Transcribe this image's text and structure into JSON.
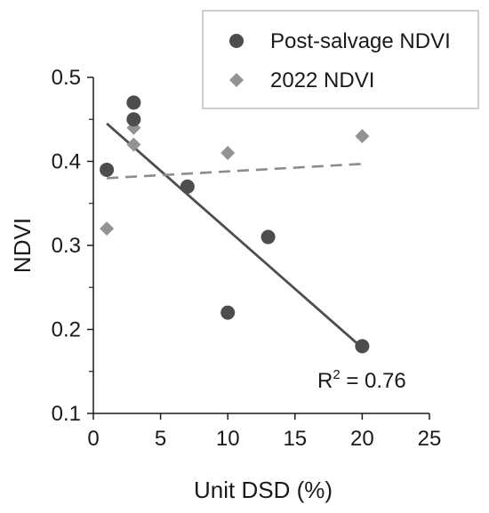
{
  "chart_data": {
    "type": "scatter",
    "xlabel": "Unit DSD (%)",
    "ylabel": "NDVI",
    "xlim": [
      0,
      25
    ],
    "ylim": [
      0.1,
      0.5
    ],
    "xticks": [
      0,
      5,
      10,
      15,
      20,
      25
    ],
    "yticks": [
      0.1,
      0.2,
      0.3,
      0.4,
      0.5
    ],
    "xtick_labels": [
      "0",
      "5",
      "10",
      "15",
      "20",
      "25"
    ],
    "ytick_labels": [
      "0.1",
      "0.2",
      "0.3",
      "0.4",
      "0.5"
    ],
    "grid": false,
    "legend_position": "top-right",
    "series": [
      {
        "name": "Post-salvage NDVI",
        "marker": "circle",
        "color": "#4d4d4d",
        "x": [
          1,
          3,
          3,
          7,
          10,
          13,
          20
        ],
        "y": [
          0.39,
          0.47,
          0.45,
          0.37,
          0.22,
          0.31,
          0.18
        ],
        "trendline": {
          "style": "solid",
          "color": "#4d4d4d",
          "x": [
            1,
            20
          ],
          "y": [
            0.445,
            0.178
          ]
        }
      },
      {
        "name": "2022 NDVI",
        "marker": "diamond",
        "color": "#939393",
        "x": [
          1,
          3,
          3,
          10,
          20
        ],
        "y": [
          0.32,
          0.44,
          0.42,
          0.41,
          0.43
        ],
        "trendline": {
          "style": "dashed",
          "color": "#8c8c8c",
          "x": [
            1,
            20
          ],
          "y": [
            0.38,
            0.397
          ]
        }
      }
    ],
    "annotation": {
      "base": "R",
      "superscript": "2",
      "text": " = 0.76"
    }
  }
}
